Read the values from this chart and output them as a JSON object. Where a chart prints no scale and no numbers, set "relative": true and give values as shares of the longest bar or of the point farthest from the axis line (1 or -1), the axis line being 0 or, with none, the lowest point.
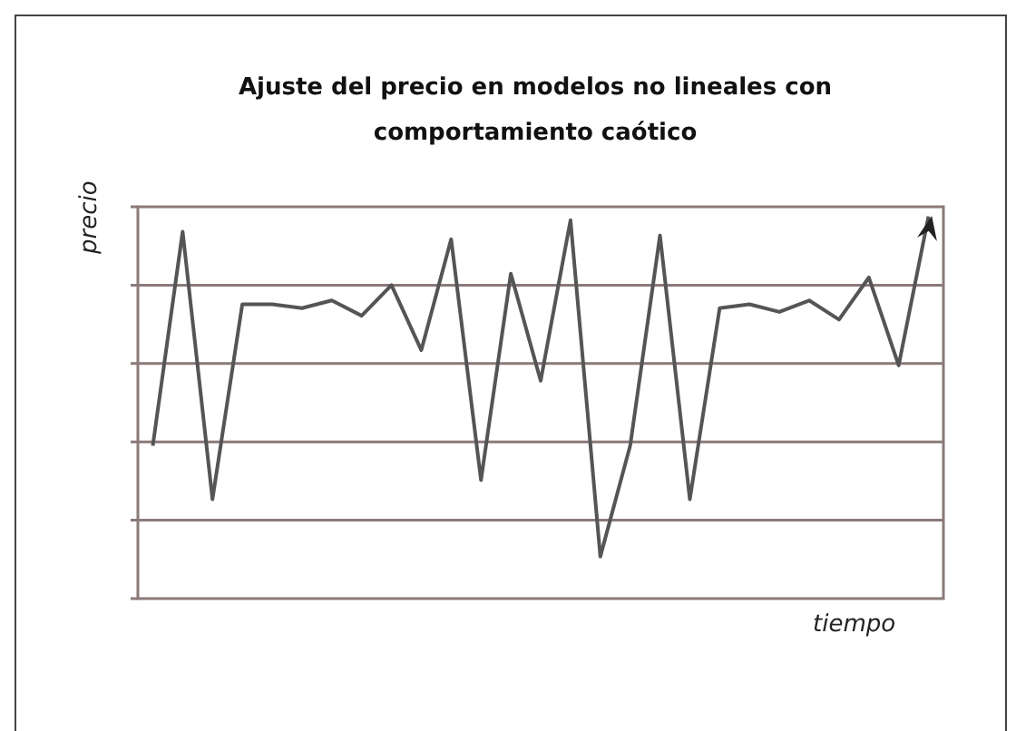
{
  "chart_data": {
    "type": "line",
    "title": "Ajuste del precio en modelos no lineales con comportamiento caótico",
    "xlabel": "tiempo",
    "ylabel": "precio",
    "relative": true,
    "grid": "y",
    "marker": "none",
    "line_style": "solid",
    "legend": false,
    "categories": [
      null,
      null,
      null,
      null,
      null,
      null,
      null,
      null,
      null,
      null,
      null,
      null,
      null,
      null,
      null,
      null,
      null,
      null,
      null,
      null,
      null,
      null,
      null,
      null,
      null,
      null,
      null
    ],
    "series": [
      {
        "color": "#555555",
        "values": [
          0.4,
          0.96,
          0.26,
          0.77,
          0.77,
          0.76,
          0.78,
          0.74,
          0.82,
          0.65,
          0.94,
          0.31,
          0.85,
          0.57,
          0.99,
          0.11,
          0.4,
          0.95,
          0.26,
          0.76,
          0.77,
          0.75,
          0.78,
          0.73,
          0.84,
          0.61,
          1.0
        ]
      }
    ]
  }
}
